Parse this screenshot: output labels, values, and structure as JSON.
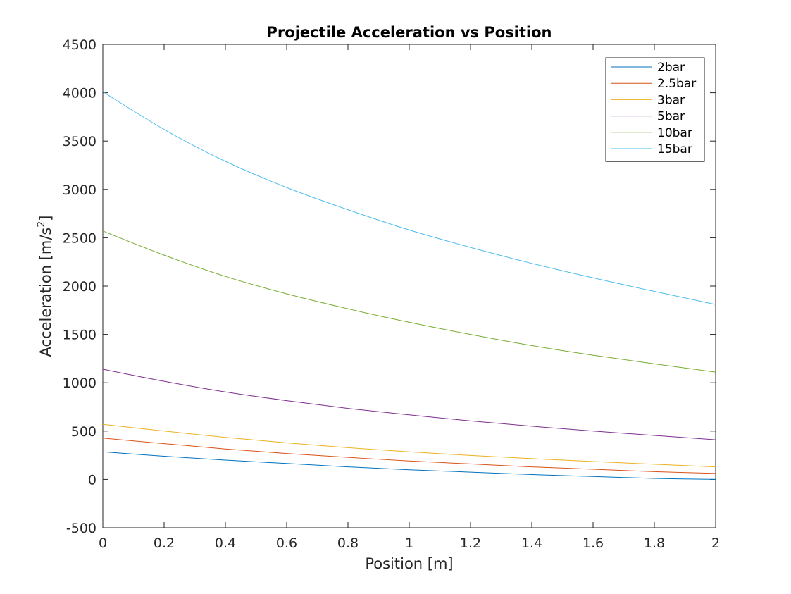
{
  "chart_data": {
    "type": "line",
    "title": "Projectile Acceleration vs Position",
    "xlabel": "Position [m]",
    "ylabel_main": "Acceleration [m/s",
    "ylabel_sup": "2",
    "ylabel_close": "]",
    "xlim": [
      0,
      2
    ],
    "ylim": [
      -500,
      4500
    ],
    "xticks": [
      0,
      0.2,
      0.4,
      0.6,
      0.8,
      1,
      1.2,
      1.4,
      1.6,
      1.8,
      2
    ],
    "xtick_labels": [
      "0",
      "0.2",
      "0.4",
      "0.6",
      "0.8",
      "1",
      "1.2",
      "1.4",
      "1.6",
      "1.8",
      "2"
    ],
    "yticks": [
      -500,
      0,
      500,
      1000,
      1500,
      2000,
      2500,
      3000,
      3500,
      4000,
      4500
    ],
    "ytick_labels": [
      "-500",
      "0",
      "500",
      "1000",
      "1500",
      "2000",
      "2500",
      "3000",
      "3500",
      "4000",
      "4500"
    ],
    "grid": false,
    "legend_position": "top-right",
    "x": [
      0,
      0.2,
      0.4,
      0.6,
      0.8,
      1.0,
      1.2,
      1.4,
      1.6,
      1.8,
      2.0
    ],
    "series": [
      {
        "name": "2bar",
        "color": "#0072BD",
        "values": [
          285,
          240,
          200,
          165,
          130,
          100,
          75,
          50,
          30,
          10,
          0
        ]
      },
      {
        "name": "2.5bar",
        "color": "#D95319",
        "values": [
          428,
          370,
          315,
          268,
          228,
          190,
          160,
          130,
          105,
          80,
          62
        ]
      },
      {
        "name": "3bar",
        "color": "#EDB120",
        "values": [
          570,
          500,
          435,
          378,
          328,
          285,
          248,
          215,
          185,
          157,
          130
        ]
      },
      {
        "name": "5bar",
        "color": "#7E2F8E",
        "values": [
          1140,
          1015,
          905,
          815,
          735,
          668,
          605,
          550,
          500,
          455,
          410
        ]
      },
      {
        "name": "10bar",
        "color": "#77AC30",
        "values": [
          2570,
          2320,
          2100,
          1920,
          1765,
          1625,
          1500,
          1385,
          1285,
          1195,
          1110
        ]
      },
      {
        "name": "15bar",
        "color": "#4DBEEE",
        "values": [
          4010,
          3620,
          3290,
          3020,
          2790,
          2580,
          2400,
          2235,
          2085,
          1945,
          1810
        ]
      }
    ]
  }
}
